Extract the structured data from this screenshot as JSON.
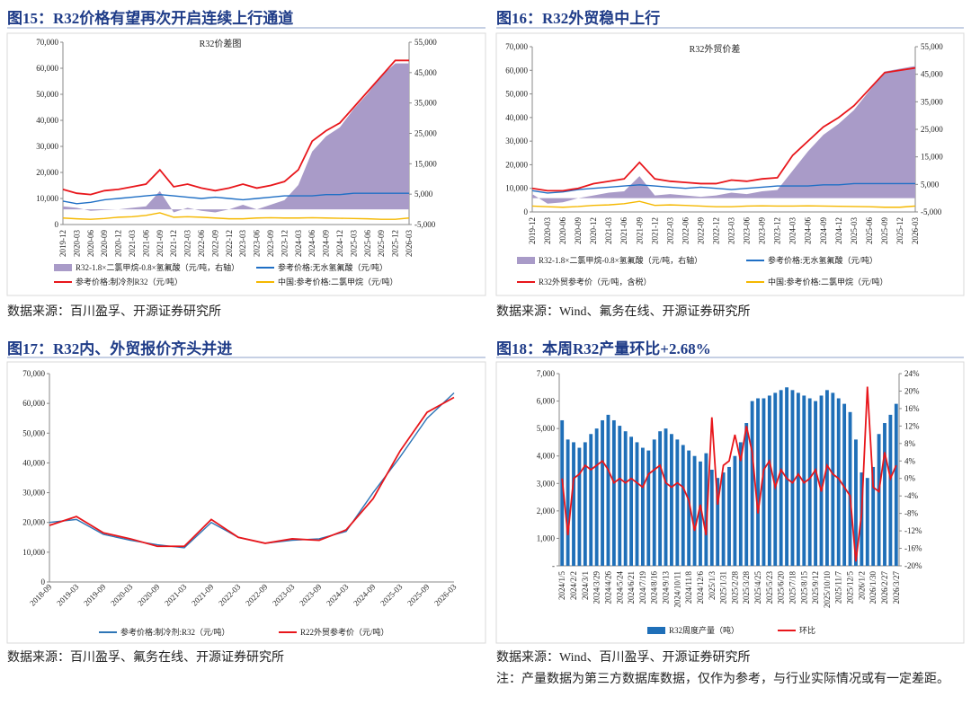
{
  "chart_data": [
    {
      "type": "combo",
      "heading": "图15：R32价格有望再次开启连续上行通道",
      "title": "R32价差图",
      "source": "数据来源：百川盈孚、开源证券研究所",
      "categories": [
        "2019-12",
        "2020-03",
        "2020-06",
        "2020-09",
        "2020-12",
        "2021-03",
        "2021-06",
        "2021-09",
        "2021-12",
        "2022-03",
        "2022-06",
        "2022-09",
        "2022-12",
        "2023-03",
        "2023-06",
        "2023-09",
        "2023-12",
        "2024-03",
        "2024-06",
        "2024-09",
        "2024-12",
        "2025-03",
        "2025-06",
        "2025-09",
        "2025-12",
        "2026-03"
      ],
      "ylim": [
        0,
        70000
      ],
      "yticks": [
        0,
        {
          "value": 10000,
          "label": "10,000"
        },
        {
          "value": 20000,
          "label": "20,000"
        },
        {
          "value": 30000,
          "label": "30,000"
        },
        {
          "value": 40000,
          "label": "40,000"
        },
        {
          "value": 50000,
          "label": "50,000"
        },
        {
          "value": 60000,
          "label": "60,000"
        },
        {
          "value": 70000,
          "label": "70,000"
        }
      ],
      "y2lim": [
        -5000,
        55000
      ],
      "y2ticks": [
        {
          "value": -5000,
          "label": "-5,000"
        },
        {
          "value": 5000,
          "label": "5,000"
        },
        {
          "value": 15000,
          "label": "15,000"
        },
        {
          "value": 25000,
          "label": "25,000"
        },
        {
          "value": 35000,
          "label": "35,000"
        },
        {
          "value": 45000,
          "label": "45,000"
        },
        {
          "value": 55000,
          "label": "55,000"
        }
      ],
      "series": [
        {
          "name": "R32-1.8×二氯甲烷-0.8×氢氟酸（元/吨，右轴）",
          "type": "area",
          "axis": "y2",
          "color": "#a99bc8",
          "values": [
            1000,
            500,
            -500,
            -200,
            0,
            500,
            1000,
            6000,
            -1000,
            500,
            -500,
            -1000,
            0,
            1500,
            0,
            1500,
            3000,
            8000,
            19000,
            24000,
            27000,
            33000,
            38000,
            44000,
            48000,
            48000
          ]
        },
        {
          "name": "参考价格:无水氢氟酸（元/吨）",
          "type": "line",
          "color": "#1f6fc5",
          "values": [
            9000,
            8000,
            8500,
            9500,
            10000,
            10500,
            11000,
            11500,
            11000,
            10500,
            10000,
            10500,
            10000,
            9500,
            10000,
            10500,
            11000,
            11000,
            11000,
            11500,
            11500,
            12000,
            12000,
            12000,
            12000,
            12000
          ]
        },
        {
          "name": "参考价格:制冷剂R32（元/吨）",
          "type": "line",
          "color": "#e8161b",
          "values": [
            13500,
            12000,
            11500,
            13000,
            13500,
            14500,
            15500,
            21000,
            14500,
            15500,
            14000,
            13000,
            14000,
            15500,
            14000,
            15000,
            16500,
            21000,
            32000,
            36000,
            39000,
            45000,
            51000,
            57000,
            63000,
            63000
          ]
        },
        {
          "name": "中国:参考价格:二氯甲烷（元/吨）",
          "type": "line",
          "color": "#f5b800",
          "values": [
            2500,
            2200,
            2000,
            2300,
            2800,
            3000,
            3500,
            4500,
            2800,
            3000,
            2800,
            2500,
            2200,
            2200,
            2500,
            2600,
            2500,
            2500,
            2600,
            2500,
            2400,
            2300,
            2200,
            2000,
            2000,
            2500
          ]
        }
      ]
    },
    {
      "type": "combo",
      "heading": "图16：R32外贸稳中上行",
      "title": "R32外贸价差",
      "source": "数据来源：Wind、氟务在线、开源证券研究所",
      "categories": [
        "2019-12",
        "2020-03",
        "2020-06",
        "2020-09",
        "2020-12",
        "2021-03",
        "2021-06",
        "2021-09",
        "2021-12",
        "2022-03",
        "2022-06",
        "2022-09",
        "2022-12",
        "2023-03",
        "2023-06",
        "2023-09",
        "2023-12",
        "2024-03",
        "2024-06",
        "2024-09",
        "2024-12",
        "2025-03",
        "2025-06",
        "2025-09",
        "2025-12",
        "2026-03"
      ],
      "ylim": [
        0,
        70000
      ],
      "yticks": [
        0,
        {
          "value": 10000,
          "label": "10,000"
        },
        {
          "value": 20000,
          "label": "20,000"
        },
        {
          "value": 30000,
          "label": "30,000"
        },
        {
          "value": 40000,
          "label": "40,000"
        },
        {
          "value": 50000,
          "label": "50,000"
        },
        {
          "value": 60000,
          "label": "60,000"
        },
        {
          "value": 70000,
          "label": "70,000"
        }
      ],
      "y2lim": [
        -5000,
        55000
      ],
      "y2ticks": [
        {
          "value": -5000,
          "label": "-5,000"
        },
        {
          "value": 5000,
          "label": "5,000"
        },
        {
          "value": 15000,
          "label": "15,000"
        },
        {
          "value": 25000,
          "label": "25,000"
        },
        {
          "value": 35000,
          "label": "35,000"
        },
        {
          "value": 45000,
          "label": "45,000"
        },
        {
          "value": 55000,
          "label": "55,000"
        }
      ],
      "series": [
        {
          "name": "R32-1.8×二氯甲烷-0.8×氢氟酸（元/吨，右轴）",
          "type": "area",
          "axis": "y2",
          "color": "#a99bc8",
          "values": [
            1500,
            -2000,
            -1500,
            0,
            1000,
            2000,
            2500,
            8000,
            1000,
            1500,
            1000,
            500,
            1000,
            2000,
            1500,
            2500,
            3000,
            10000,
            17000,
            23000,
            27000,
            32000,
            39000,
            46000,
            47000,
            48000
          ]
        },
        {
          "name": "参考价格:无水氢氟酸（元/吨）",
          "type": "line",
          "color": "#1f6fc5",
          "values": [
            9000,
            8000,
            8500,
            9500,
            10000,
            10500,
            11000,
            11500,
            11000,
            10500,
            10000,
            10500,
            10000,
            9500,
            10000,
            10500,
            11000,
            11000,
            11000,
            11500,
            11500,
            12000,
            12000,
            12000,
            12000,
            12000
          ]
        },
        {
          "name": "R32外贸参考价（元/吨，含税）",
          "type": "line",
          "color": "#e8161b",
          "values": [
            10000,
            9000,
            9000,
            10000,
            12000,
            13000,
            14000,
            21000,
            14000,
            13000,
            12500,
            12000,
            12000,
            13500,
            13000,
            14000,
            14500,
            24000,
            30000,
            36000,
            40000,
            45000,
            52000,
            59000,
            60000,
            61000
          ]
        },
        {
          "name": "中国:参考价格:二氯甲烷（元/吨）",
          "type": "line",
          "color": "#f5b800",
          "values": [
            2500,
            2200,
            2000,
            2300,
            2800,
            3000,
            3500,
            4500,
            2800,
            3000,
            2800,
            2500,
            2200,
            2200,
            2500,
            2600,
            2500,
            2500,
            2600,
            2500,
            2400,
            2300,
            2200,
            2000,
            2000,
            2500
          ]
        }
      ]
    },
    {
      "type": "line",
      "heading": "图17：R32内、外贸报价齐头并进",
      "source": "数据来源：百川盈孚、氟务在线、开源证券研究所",
      "categories": [
        "2018-09",
        "2019-03",
        "2019-09",
        "2020-03",
        "2020-09",
        "2021-03",
        "2021-09",
        "2022-03",
        "2022-09",
        "2023-03",
        "2023-09",
        "2024-03",
        "2024-09",
        "2025-03",
        "2025-09",
        "2026-03"
      ],
      "ylim": [
        0,
        70000
      ],
      "yticks": [
        0,
        {
          "value": 10000,
          "label": "10,000"
        },
        {
          "value": 20000,
          "label": "20,000"
        },
        {
          "value": 30000,
          "label": "30,000"
        },
        {
          "value": 40000,
          "label": "40,000"
        },
        {
          "value": 50000,
          "label": "50,000"
        },
        {
          "value": 60000,
          "label": "60,000"
        },
        {
          "value": 70000,
          "label": "70,000"
        }
      ],
      "series": [
        {
          "name": "参考价格:制冷剂:R32（元/吨）",
          "type": "line",
          "color": "#2e75b6",
          "values": [
            20000,
            21000,
            16000,
            14000,
            12500,
            11500,
            20000,
            15000,
            13000,
            14000,
            14500,
            17000,
            30000,
            42000,
            55000,
            63500
          ]
        },
        {
          "name": "R22外贸参考价（元/吨）",
          "type": "line",
          "color": "#e8161b",
          "values": [
            19000,
            22000,
            16500,
            14500,
            12000,
            12000,
            21000,
            15000,
            13000,
            14500,
            14000,
            17500,
            28000,
            44000,
            57000,
            62000
          ]
        }
      ]
    },
    {
      "type": "combo",
      "heading": "图18：本周R32产量环比+2.68%",
      "source": "数据来源：Wind、百川盈孚、开源证券研究所",
      "note": "注：产量数据为第三方数据库数据，仅作为参考，与行业实际情况或有一定差距。",
      "categories": [
        "2024/1/5",
        null,
        "2024/2/2",
        null,
        "2024/3/1",
        null,
        "2024/3/29",
        null,
        "2024/4/26",
        null,
        "2024/5/24",
        null,
        "2024/6/21",
        null,
        "2024/7/19",
        null,
        "2024/8/16",
        null,
        "2024/9/13",
        null,
        "2024/10/11",
        null,
        "2024/11/8",
        null,
        "2024/12/6",
        null,
        "2025/1/3",
        null,
        "2025/1/31",
        null,
        "2025/2/28",
        null,
        "2025/3/28",
        null,
        "2025/4/25",
        null,
        "2025/5/23",
        null,
        "2025/6/20",
        null,
        "2025/7/18",
        null,
        "2025/8/15",
        null,
        "2025/9/12",
        null,
        "2025/10/10",
        null,
        "2025/11/7",
        null,
        "2025/12/5",
        null,
        "2026/1/2",
        null,
        "2026/1/30",
        null,
        "2026/2/27",
        null,
        "2026/3/27"
      ],
      "ylim": [
        0,
        7000
      ],
      "yticks": [
        {
          "value": 0,
          "label": "-"
        },
        {
          "value": 1000,
          "label": "1,000"
        },
        {
          "value": 2000,
          "label": "2,000"
        },
        {
          "value": 3000,
          "label": "3,000"
        },
        {
          "value": 4000,
          "label": "4,000"
        },
        {
          "value": 5000,
          "label": "5,000"
        },
        {
          "value": 6000,
          "label": "6,000"
        },
        {
          "value": 7000,
          "label": "7,000"
        }
      ],
      "y2lim": [
        -20,
        24
      ],
      "y2ticks": [
        {
          "value": -20,
          "label": "-20%"
        },
        {
          "value": -16,
          "label": "-16%"
        },
        {
          "value": -12,
          "label": "-12%"
        },
        {
          "value": -8,
          "label": "-8%"
        },
        {
          "value": -4,
          "label": "-4%"
        },
        {
          "value": 0,
          "label": "0%"
        },
        {
          "value": 4,
          "label": "4%"
        },
        {
          "value": 8,
          "label": "8%"
        },
        {
          "value": 12,
          "label": "12%"
        },
        {
          "value": 16,
          "label": "16%"
        },
        {
          "value": 20,
          "label": "20%"
        },
        {
          "value": 24,
          "label": "24%"
        }
      ],
      "series": [
        {
          "name": "R32周度产量（吨）",
          "type": "bar",
          "color": "#1f6fb8",
          "values": [
            5300,
            4600,
            4500,
            4300,
            4500,
            4800,
            5000,
            5300,
            5500,
            5300,
            5100,
            4900,
            4700,
            4500,
            4300,
            4200,
            4600,
            4900,
            5000,
            4800,
            4600,
            4400,
            4200,
            4000,
            3800,
            4100,
            3500,
            3200,
            3400,
            3600,
            4000,
            4500,
            5200,
            6000,
            6100,
            6100,
            6200,
            6300,
            6400,
            6500,
            6400,
            6300,
            6200,
            6100,
            6000,
            6200,
            6400,
            6300,
            6100,
            5900,
            5600,
            4600,
            3400,
            3200,
            3600,
            4800,
            5200,
            5500,
            5900
          ]
        },
        {
          "name": "环比",
          "type": "line",
          "axis": "y2",
          "color": "#e8161b",
          "values": [
            0,
            -13,
            0,
            1,
            3,
            2,
            3,
            4,
            2,
            -1,
            0,
            -1,
            0,
            -1,
            -2,
            1,
            2,
            3,
            -1,
            -2,
            -1,
            -2,
            -5,
            -12,
            -6,
            -13,
            14,
            -6,
            3,
            4,
            10,
            4,
            12,
            6,
            -8,
            2,
            4,
            -2,
            2,
            0,
            -1,
            1,
            -1,
            0,
            2,
            -3,
            3,
            1,
            0,
            -2,
            -4,
            -19,
            -8,
            21,
            -2,
            -3,
            6,
            0,
            3
          ]
        }
      ]
    }
  ]
}
